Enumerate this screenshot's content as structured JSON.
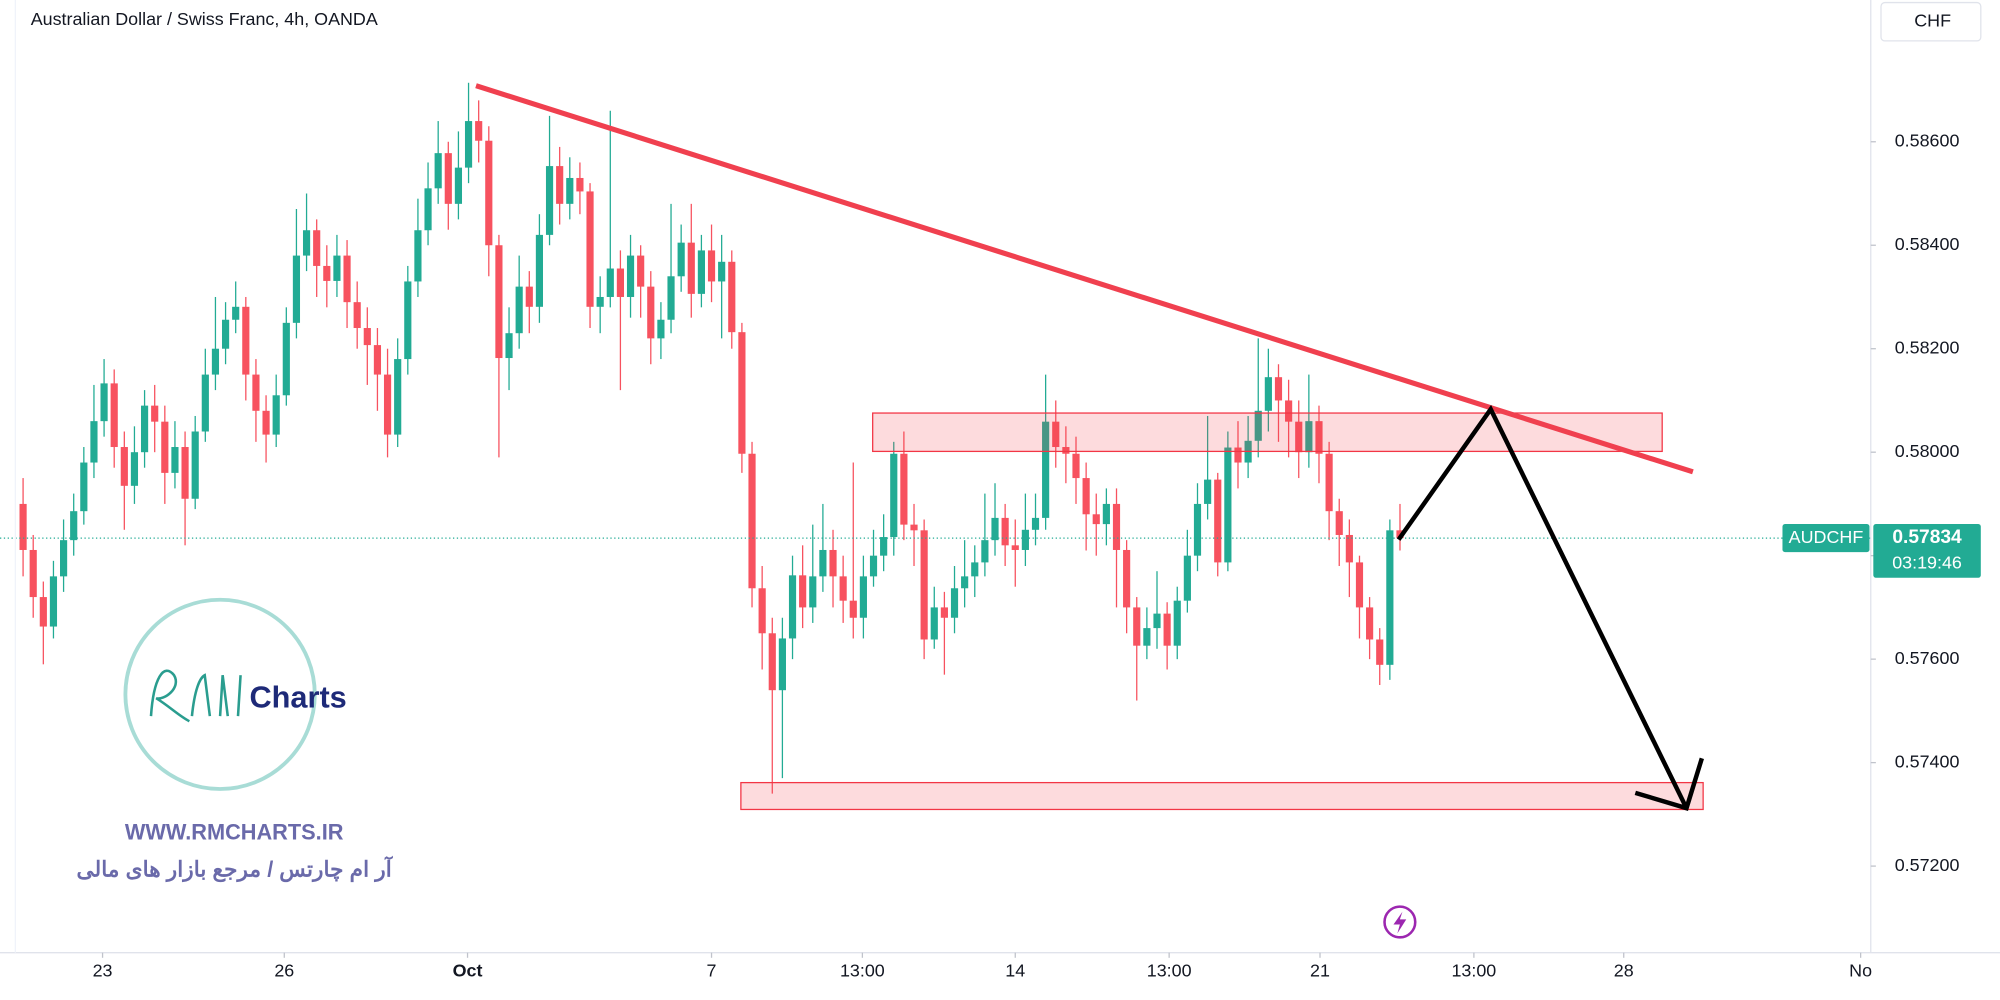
{
  "header": {
    "title": "Australian Dollar / Swiss Franc, 4h, OANDA",
    "currency": "CHF"
  },
  "chart_data": {
    "type": "candlestick",
    "up_color": "#22ab94",
    "down_color": "#f7525f",
    "grid": false,
    "ylim": [
      0.57045,
      0.58874
    ],
    "yticks": [
      {
        "value": 0.572,
        "label": "0.57200"
      },
      {
        "value": 0.574,
        "label": "0.57400"
      },
      {
        "value": 0.576,
        "label": "0.57600"
      },
      {
        "value": 0.578,
        "label": "0.57800"
      },
      {
        "value": 0.58,
        "label": "0.58000"
      },
      {
        "value": 0.582,
        "label": "0.58200"
      },
      {
        "value": 0.584,
        "label": "0.58400"
      },
      {
        "value": 0.586,
        "label": "0.58600"
      }
    ],
    "xlim": [
      -2.28,
      182.5
    ],
    "xticks": [
      {
        "value": 7.85,
        "label": "23"
      },
      {
        "value": 25.8,
        "label": "26"
      },
      {
        "value": 43.9,
        "label": "Oct"
      },
      {
        "value": 68,
        "label": "7"
      },
      {
        "value": 82.9,
        "label": "13:00"
      },
      {
        "value": 98,
        "label": "14"
      },
      {
        "value": 113.2,
        "label": "13:00"
      },
      {
        "value": 128.1,
        "label": "21"
      },
      {
        "value": 143.3,
        "label": "13:00"
      },
      {
        "value": 158.1,
        "label": "28"
      },
      {
        "value": 181.5,
        "label": "No"
      }
    ],
    "symbol": "AUDCHF",
    "last_price": 0.57834,
    "countdown": "03:19:46",
    "ohlc": [
      [
        0.579,
        0.5795,
        0.5776,
        0.57811
      ],
      [
        0.57811,
        0.5784,
        0.5768,
        0.5772
      ],
      [
        0.5772,
        0.5775,
        0.5759,
        0.57663
      ],
      [
        0.57663,
        0.5779,
        0.5764,
        0.5776
      ],
      [
        0.5776,
        0.5787,
        0.5773,
        0.5783
      ],
      [
        0.5783,
        0.5792,
        0.578,
        0.57886
      ],
      [
        0.57886,
        0.5801,
        0.5786,
        0.5798
      ],
      [
        0.5798,
        0.5813,
        0.5795,
        0.5806
      ],
      [
        0.5806,
        0.5818,
        0.5803,
        0.58133
      ],
      [
        0.58133,
        0.5816,
        0.5797,
        0.5801
      ],
      [
        0.5801,
        0.5804,
        0.5785,
        0.57935
      ],
      [
        0.57935,
        0.5805,
        0.579,
        0.58
      ],
      [
        0.58,
        0.5812,
        0.5797,
        0.5809
      ],
      [
        0.5809,
        0.5813,
        0.58,
        0.58059
      ],
      [
        0.58059,
        0.5809,
        0.579,
        0.5796
      ],
      [
        0.5796,
        0.5806,
        0.5793,
        0.5801
      ],
      [
        0.5801,
        0.5804,
        0.5782,
        0.5791
      ],
      [
        0.5791,
        0.5807,
        0.5789,
        0.5804
      ],
      [
        0.5804,
        0.582,
        0.5802,
        0.5815
      ],
      [
        0.5815,
        0.583,
        0.5812,
        0.582
      ],
      [
        0.582,
        0.5829,
        0.5817,
        0.58256
      ],
      [
        0.58256,
        0.5833,
        0.5823,
        0.58281
      ],
      [
        0.58281,
        0.583,
        0.581,
        0.5815
      ],
      [
        0.5815,
        0.5818,
        0.5802,
        0.5808
      ],
      [
        0.5808,
        0.5811,
        0.5798,
        0.58034
      ],
      [
        0.58034,
        0.5815,
        0.5801,
        0.5811
      ],
      [
        0.5811,
        0.5828,
        0.5809,
        0.5825
      ],
      [
        0.5825,
        0.5847,
        0.5822,
        0.5838
      ],
      [
        0.5838,
        0.585,
        0.5835,
        0.58429
      ],
      [
        0.58429,
        0.5845,
        0.583,
        0.5836
      ],
      [
        0.5836,
        0.584,
        0.5828,
        0.58331
      ],
      [
        0.58331,
        0.5842,
        0.583,
        0.5838
      ],
      [
        0.5838,
        0.5841,
        0.5824,
        0.5829
      ],
      [
        0.5829,
        0.5833,
        0.582,
        0.5824
      ],
      [
        0.5824,
        0.5828,
        0.5813,
        0.58207
      ],
      [
        0.58207,
        0.5824,
        0.5808,
        0.5815
      ],
      [
        0.5815,
        0.582,
        0.5799,
        0.58034
      ],
      [
        0.58034,
        0.5822,
        0.5801,
        0.5818
      ],
      [
        0.5818,
        0.5836,
        0.5815,
        0.5833
      ],
      [
        0.5833,
        0.5849,
        0.583,
        0.58429
      ],
      [
        0.58429,
        0.5856,
        0.584,
        0.5851
      ],
      [
        0.5851,
        0.5864,
        0.5848,
        0.58578
      ],
      [
        0.58578,
        0.586,
        0.5843,
        0.5848
      ],
      [
        0.5848,
        0.5862,
        0.5845,
        0.5855
      ],
      [
        0.5855,
        0.58714,
        0.5852,
        0.5864
      ],
      [
        0.5864,
        0.5868,
        0.5856,
        0.58602
      ],
      [
        0.58602,
        0.5863,
        0.5834,
        0.584
      ],
      [
        0.584,
        0.5842,
        0.5799,
        0.58182
      ],
      [
        0.58182,
        0.5828,
        0.5812,
        0.5823
      ],
      [
        0.5823,
        0.5838,
        0.582,
        0.5832
      ],
      [
        0.5832,
        0.5835,
        0.5823,
        0.58281
      ],
      [
        0.58281,
        0.5846,
        0.5825,
        0.5842
      ],
      [
        0.5842,
        0.5865,
        0.584,
        0.58553
      ],
      [
        0.58553,
        0.5859,
        0.5844,
        0.5848
      ],
      [
        0.5848,
        0.5857,
        0.5845,
        0.5853
      ],
      [
        0.5853,
        0.5856,
        0.5846,
        0.58504
      ],
      [
        0.58504,
        0.5852,
        0.5824,
        0.58281
      ],
      [
        0.58281,
        0.5834,
        0.5823,
        0.583
      ],
      [
        0.583,
        0.5866,
        0.5828,
        0.58355
      ],
      [
        0.58355,
        0.5839,
        0.5812,
        0.583
      ],
      [
        0.583,
        0.5842,
        0.5826,
        0.5838
      ],
      [
        0.5838,
        0.584,
        0.5826,
        0.5832
      ],
      [
        0.5832,
        0.5835,
        0.5817,
        0.5822
      ],
      [
        0.5822,
        0.5829,
        0.5818,
        0.58256
      ],
      [
        0.58256,
        0.5848,
        0.5823,
        0.5834
      ],
      [
        0.5834,
        0.5844,
        0.5831,
        0.58405
      ],
      [
        0.58405,
        0.5848,
        0.5826,
        0.58306
      ],
      [
        0.58306,
        0.5842,
        0.5828,
        0.5839
      ],
      [
        0.5839,
        0.5844,
        0.5829,
        0.5833
      ],
      [
        0.5833,
        0.5842,
        0.5822,
        0.58368
      ],
      [
        0.58368,
        0.5839,
        0.582,
        0.58232
      ],
      [
        0.58232,
        0.5825,
        0.5796,
        0.57997
      ],
      [
        0.57997,
        0.5802,
        0.577,
        0.57737
      ],
      [
        0.57737,
        0.5778,
        0.5758,
        0.5765
      ],
      [
        0.5765,
        0.5768,
        0.5734,
        0.5754
      ],
      [
        0.5754,
        0.5768,
        0.5737,
        0.5764
      ],
      [
        0.5764,
        0.578,
        0.576,
        0.57762
      ],
      [
        0.57762,
        0.5782,
        0.5766,
        0.577
      ],
      [
        0.577,
        0.5786,
        0.5767,
        0.5776
      ],
      [
        0.5776,
        0.579,
        0.5773,
        0.57811
      ],
      [
        0.57811,
        0.5785,
        0.577,
        0.5776
      ],
      [
        0.5776,
        0.578,
        0.5767,
        0.57713
      ],
      [
        0.57713,
        0.5798,
        0.5764,
        0.5768
      ],
      [
        0.5768,
        0.578,
        0.5764,
        0.5776
      ],
      [
        0.5776,
        0.5785,
        0.5774,
        0.578
      ],
      [
        0.578,
        0.5788,
        0.5777,
        0.57836
      ],
      [
        0.57836,
        0.5802,
        0.578,
        0.57997
      ],
      [
        0.57997,
        0.5804,
        0.5783,
        0.5786
      ],
      [
        0.5786,
        0.579,
        0.5778,
        0.57849
      ],
      [
        0.57849,
        0.5787,
        0.576,
        0.57638
      ],
      [
        0.57638,
        0.5774,
        0.5762,
        0.577
      ],
      [
        0.577,
        0.5773,
        0.5757,
        0.5768
      ],
      [
        0.5768,
        0.5778,
        0.5765,
        0.57737
      ],
      [
        0.57737,
        0.5783,
        0.577,
        0.5776
      ],
      [
        0.5776,
        0.5782,
        0.5772,
        0.57787
      ],
      [
        0.57787,
        0.5792,
        0.5776,
        0.5783
      ],
      [
        0.5783,
        0.5794,
        0.578,
        0.57873
      ],
      [
        0.57873,
        0.579,
        0.5778,
        0.5782
      ],
      [
        0.5782,
        0.5787,
        0.5774,
        0.57811
      ],
      [
        0.57811,
        0.5792,
        0.5778,
        0.5785
      ],
      [
        0.5785,
        0.5792,
        0.5782,
        0.57873
      ],
      [
        0.57873,
        0.5815,
        0.5785,
        0.58059
      ],
      [
        0.58059,
        0.581,
        0.5797,
        0.5801
      ],
      [
        0.5801,
        0.5805,
        0.5794,
        0.57997
      ],
      [
        0.57997,
        0.5803,
        0.579,
        0.5795
      ],
      [
        0.5795,
        0.5798,
        0.5781,
        0.5788
      ],
      [
        0.5788,
        0.5792,
        0.578,
        0.57861
      ],
      [
        0.57861,
        0.5793,
        0.5782,
        0.579
      ],
      [
        0.579,
        0.5793,
        0.577,
        0.57811
      ],
      [
        0.57811,
        0.5783,
        0.5765,
        0.577
      ],
      [
        0.577,
        0.5772,
        0.5752,
        0.57626
      ],
      [
        0.57626,
        0.577,
        0.576,
        0.5766
      ],
      [
        0.5766,
        0.5777,
        0.5762,
        0.57688
      ],
      [
        0.57688,
        0.5771,
        0.5758,
        0.57626
      ],
      [
        0.57626,
        0.5774,
        0.576,
        0.57713
      ],
      [
        0.57713,
        0.5785,
        0.5769,
        0.578
      ],
      [
        0.578,
        0.5794,
        0.5777,
        0.579
      ],
      [
        0.579,
        0.5807,
        0.5787,
        0.57947
      ],
      [
        0.57947,
        0.5796,
        0.5776,
        0.57787
      ],
      [
        0.57787,
        0.5804,
        0.5777,
        0.58009
      ],
      [
        0.58009,
        0.5806,
        0.5793,
        0.5798
      ],
      [
        0.5798,
        0.5807,
        0.5795,
        0.58022
      ],
      [
        0.58022,
        0.5822,
        0.5799,
        0.5808
      ],
      [
        0.5808,
        0.582,
        0.5804,
        0.58145
      ],
      [
        0.58145,
        0.5817,
        0.5802,
        0.581
      ],
      [
        0.581,
        0.5814,
        0.5799,
        0.58059
      ],
      [
        0.58059,
        0.581,
        0.5795,
        0.58
      ],
      [
        0.58,
        0.5815,
        0.5797,
        0.5806
      ],
      [
        0.5806,
        0.5809,
        0.5794,
        0.57997
      ],
      [
        0.57997,
        0.5802,
        0.5783,
        0.57886
      ],
      [
        0.57886,
        0.5791,
        0.5778,
        0.5784
      ],
      [
        0.5784,
        0.5787,
        0.5772,
        0.57787
      ],
      [
        0.57787,
        0.578,
        0.5764,
        0.577
      ],
      [
        0.577,
        0.5772,
        0.576,
        0.57638
      ],
      [
        0.57638,
        0.5766,
        0.5755,
        0.57589
      ],
      [
        0.57589,
        0.5787,
        0.5756,
        0.57849
      ],
      [
        0.57849,
        0.579,
        0.5781,
        0.57834
      ]
    ]
  },
  "watermark": {
    "brand": "Charts",
    "website": "WWW.RMCHARTS.IR",
    "tagline": "آر ام چارتس / مرجع بازار های مالی"
  }
}
